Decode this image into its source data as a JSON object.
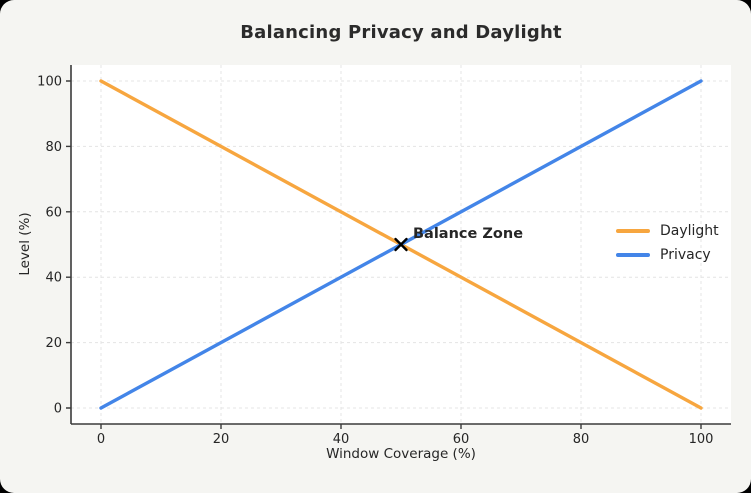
{
  "chart_data": {
    "type": "line",
    "title": "Balancing Privacy and Daylight",
    "xlabel": "Window Coverage (%)",
    "ylabel": "Level (%)",
    "x": [
      0,
      50,
      100
    ],
    "series": [
      {
        "name": "Daylight",
        "values": [
          100,
          50,
          0
        ],
        "color": "#F7A63F"
      },
      {
        "name": "Privacy",
        "values": [
          0,
          50,
          100
        ],
        "color": "#4385E8"
      }
    ],
    "xlim": [
      0,
      100
    ],
    "ylim": [
      0,
      100
    ],
    "xticks": [
      0,
      20,
      40,
      60,
      80,
      100
    ],
    "yticks": [
      0,
      20,
      40,
      60,
      80,
      100
    ],
    "grid": true,
    "grid_style": "dashed",
    "legend_position": "center-right",
    "annotation": {
      "text": "Balance Zone",
      "x": 50,
      "y": 50,
      "marker": "x",
      "marker_color": "#000000"
    }
  },
  "colors": {
    "figure_background": "#F5F5F2",
    "plot_background": "#FFFFFF",
    "grid": "#E4E4E4",
    "spine": "#3B3B3B",
    "text": "#262626"
  }
}
